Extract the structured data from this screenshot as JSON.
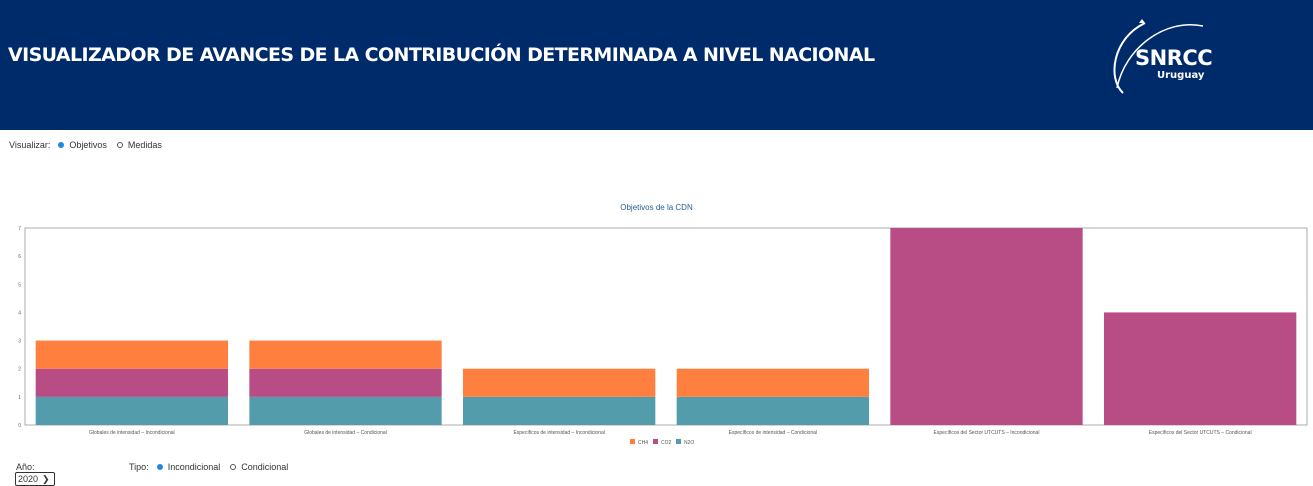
{
  "header": {
    "title": "VISUALIZADOR DE AVANCES DE LA CONTRIBUCIÓN DETERMINADA A NIVEL NACIONAL"
  },
  "logo": {
    "text": "SNRCC",
    "sub": "Uruguay"
  },
  "visualizar": {
    "label": "Visualizar:",
    "options": [
      {
        "label": "Objetivos",
        "selected": true
      },
      {
        "label": "Medidas",
        "selected": false
      }
    ]
  },
  "tipo": {
    "label": "Tipo:",
    "options": [
      {
        "label": "Incondicional",
        "selected": true
      },
      {
        "label": "Condicional",
        "selected": false
      }
    ]
  },
  "year": {
    "label": "Año:",
    "value": "2020"
  },
  "colors": {
    "header_bg": "#002b6b",
    "ch4": "#ff7f3f",
    "co2": "#b84c84",
    "n2o": "#529cab",
    "accent": "#1e88e5"
  },
  "chart_data": {
    "type": "bar",
    "stacked": true,
    "title": "Objetivos de la CDN",
    "categories": [
      "Globales de intensidad – Incondicional",
      "Globales de intensidad – Condicional",
      "Específicos de intensidad – Incondicional",
      "Específicos de intensidad – Condicional",
      "Específicos del Sector UTCUTS – Incondicional",
      "Específicos del Sector UTCUTS – Condicional"
    ],
    "series": [
      {
        "name": "N2O",
        "color": "#529cab",
        "values": [
          1,
          1,
          1,
          1,
          0,
          0
        ]
      },
      {
        "name": "CO2",
        "color": "#b84c84",
        "values": [
          1,
          1,
          0,
          0,
          7,
          4
        ]
      },
      {
        "name": "CH4",
        "color": "#ff7f3f",
        "values": [
          1,
          1,
          1,
          1,
          0,
          0
        ]
      }
    ],
    "legend_order": [
      "CH4",
      "CO2",
      "N2O"
    ],
    "yticks": [
      0,
      1,
      2,
      3,
      4,
      5,
      6,
      7
    ],
    "ylim": [
      0,
      7
    ],
    "grid": false,
    "legend_position": "bottom-center"
  }
}
